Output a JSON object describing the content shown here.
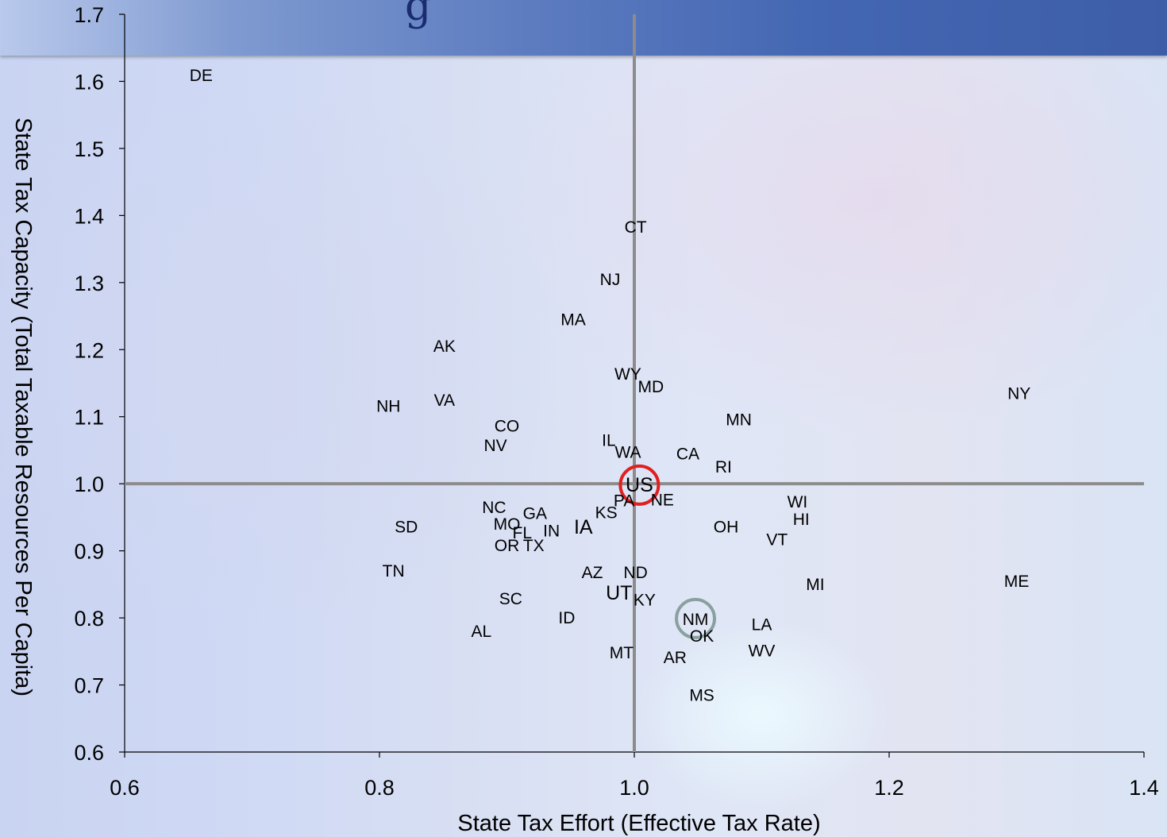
{
  "banner": {
    "title_fragment": "g"
  },
  "chart_data": {
    "type": "scatter",
    "xlabel": "State Tax Effort (Effective Tax Rate)",
    "ylabel": "State Tax Capacity (Total Taxable Resources Per Capita)",
    "xlim": [
      0.6,
      1.4
    ],
    "ylim": [
      0.6,
      1.7
    ],
    "x_ticks": [
      "0.6",
      "0.8",
      "1.0",
      "1.2",
      "1.4"
    ],
    "y_ticks": [
      "0.6",
      "0.7",
      "0.8",
      "0.9",
      "1.0",
      "1.1",
      "1.2",
      "1.3",
      "1.4",
      "1.5",
      "1.6",
      "1.7"
    ],
    "reference_lines": {
      "x": 1.0,
      "y": 1.0
    },
    "highlight_circles": [
      {
        "label": "US",
        "color": "#e02020"
      },
      {
        "label": "NM",
        "color": "#8aa0a0"
      }
    ],
    "points": [
      {
        "label": "DE",
        "x": 0.66,
        "y": 1.61
      },
      {
        "label": "CT",
        "x": 1.001,
        "y": 1.384
      },
      {
        "label": "NJ",
        "x": 0.981,
        "y": 1.306
      },
      {
        "label": "MA",
        "x": 0.952,
        "y": 1.246
      },
      {
        "label": "AK",
        "x": 0.851,
        "y": 1.206
      },
      {
        "label": "WY",
        "x": 0.995,
        "y": 1.165
      },
      {
        "label": "MD",
        "x": 1.013,
        "y": 1.146
      },
      {
        "label": "NY",
        "x": 1.302,
        "y": 1.136
      },
      {
        "label": "NH",
        "x": 0.807,
        "y": 1.117
      },
      {
        "label": "VA",
        "x": 0.851,
        "y": 1.126
      },
      {
        "label": "CO",
        "x": 0.9,
        "y": 1.087
      },
      {
        "label": "MN",
        "x": 1.082,
        "y": 1.097
      },
      {
        "label": "NV",
        "x": 0.891,
        "y": 1.058
      },
      {
        "label": "IL",
        "x": 0.98,
        "y": 1.066
      },
      {
        "label": "WA",
        "x": 0.995,
        "y": 1.048
      },
      {
        "label": "CA",
        "x": 1.042,
        "y": 1.046
      },
      {
        "label": "RI",
        "x": 1.07,
        "y": 1.026
      },
      {
        "label": "US",
        "x": 1.004,
        "y": 0.998
      },
      {
        "label": "PA",
        "x": 0.992,
        "y": 0.976
      },
      {
        "label": "NE",
        "x": 1.022,
        "y": 0.977
      },
      {
        "label": "WI",
        "x": 1.128,
        "y": 0.974
      },
      {
        "label": "NC",
        "x": 0.89,
        "y": 0.966
      },
      {
        "label": "GA",
        "x": 0.922,
        "y": 0.957
      },
      {
        "label": "KS",
        "x": 0.978,
        "y": 0.958
      },
      {
        "label": "HI",
        "x": 1.131,
        "y": 0.948
      },
      {
        "label": "SD",
        "x": 0.821,
        "y": 0.937
      },
      {
        "label": "MO",
        "x": 0.9,
        "y": 0.941
      },
      {
        "label": "FL",
        "x": 0.912,
        "y": 0.928
      },
      {
        "label": "IN",
        "x": 0.935,
        "y": 0.931
      },
      {
        "label": "IA",
        "x": 0.96,
        "y": 0.935
      },
      {
        "label": "OH",
        "x": 1.072,
        "y": 0.937
      },
      {
        "label": "VT",
        "x": 1.112,
        "y": 0.918
      },
      {
        "label": "OR",
        "x": 0.9,
        "y": 0.909
      },
      {
        "label": "TX",
        "x": 0.921,
        "y": 0.909
      },
      {
        "label": "TN",
        "x": 0.811,
        "y": 0.871
      },
      {
        "label": "AZ",
        "x": 0.967,
        "y": 0.869
      },
      {
        "label": "ND",
        "x": 1.001,
        "y": 0.869
      },
      {
        "label": "ME",
        "x": 1.3,
        "y": 0.856
      },
      {
        "label": "MI",
        "x": 1.142,
        "y": 0.851
      },
      {
        "label": "UT",
        "x": 0.988,
        "y": 0.837
      },
      {
        "label": "KY",
        "x": 1.008,
        "y": 0.828
      },
      {
        "label": "SC",
        "x": 0.903,
        "y": 0.83
      },
      {
        "label": "ID",
        "x": 0.947,
        "y": 0.801
      },
      {
        "label": "NM",
        "x": 1.048,
        "y": 0.799
      },
      {
        "label": "LA",
        "x": 1.1,
        "y": 0.791
      },
      {
        "label": "AL",
        "x": 0.88,
        "y": 0.781
      },
      {
        "label": "OK",
        "x": 1.053,
        "y": 0.774
      },
      {
        "label": "MT",
        "x": 0.99,
        "y": 0.749
      },
      {
        "label": "WV",
        "x": 1.1,
        "y": 0.752
      },
      {
        "label": "AR",
        "x": 1.032,
        "y": 0.742
      },
      {
        "label": "MS",
        "x": 1.053,
        "y": 0.686
      }
    ]
  }
}
